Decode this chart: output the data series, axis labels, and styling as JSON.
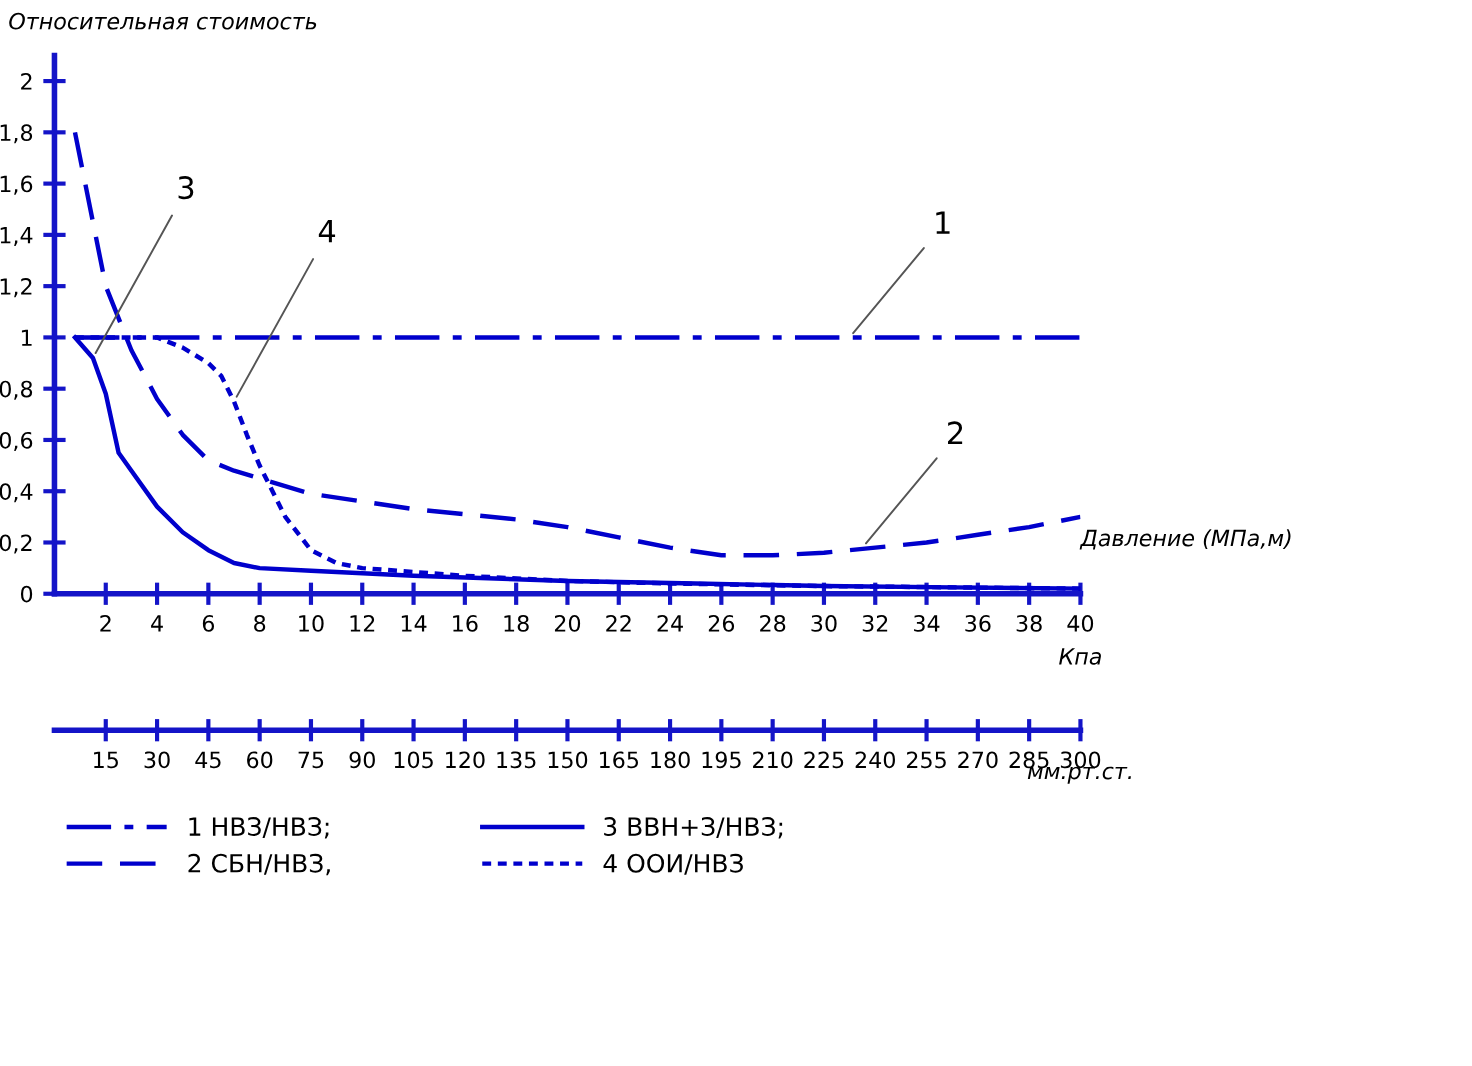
{
  "chart_data": {
    "type": "line",
    "ylabel": "Относительная стоимость",
    "xlabel": "Кпа",
    "x2label": "мм.рт.ст.",
    "xlim": [
      0,
      40
    ],
    "xticks": [
      2,
      4,
      6,
      8,
      10,
      12,
      14,
      16,
      18,
      20,
      22,
      24,
      26,
      28,
      30,
      32,
      34,
      36,
      38,
      40
    ],
    "x2lim": [
      0,
      300
    ],
    "x2ticks": [
      15,
      30,
      45,
      60,
      75,
      90,
      105,
      120,
      135,
      150,
      165,
      180,
      195,
      210,
      225,
      240,
      255,
      270,
      285,
      300
    ],
    "ylim": [
      0,
      2.1
    ],
    "yticks": [
      {
        "value": 0,
        "label": "0"
      },
      {
        "value": 0.2,
        "label": "0,2"
      },
      {
        "value": 0.4,
        "label": "0,4"
      },
      {
        "value": 0.6,
        "label": "0,6"
      },
      {
        "value": 0.8,
        "label": "0,8"
      },
      {
        "value": 1,
        "label": "1"
      },
      {
        "value": 1.2,
        "label": "1,2"
      },
      {
        "value": 1.4,
        "label": "1,4"
      },
      {
        "value": 1.6,
        "label": "1,6"
      },
      {
        "value": 1.8,
        "label": "1,8"
      },
      {
        "value": 2,
        "label": "2"
      }
    ],
    "grid": false,
    "legend": "bottom",
    "series": [
      {
        "name": "1 НВЗ/НВЗ;",
        "color": "#0000cc",
        "line_style": "dashdot",
        "x": [
          0.8,
          40
        ],
        "values": [
          1,
          1
        ]
      },
      {
        "name": "2 СБН/НВЗ,",
        "color": "#0000cc",
        "line_style": "dashed",
        "x": [
          0.8,
          2,
          3,
          4,
          5,
          6,
          7,
          8,
          10,
          12,
          14,
          16,
          18,
          20,
          22,
          24,
          26,
          28,
          30,
          32,
          34,
          36,
          38,
          40
        ],
        "values": [
          1.8,
          1.2,
          0.95,
          0.76,
          0.62,
          0.52,
          0.48,
          0.45,
          0.39,
          0.36,
          0.33,
          0.31,
          0.29,
          0.26,
          0.22,
          0.18,
          0.15,
          0.15,
          0.16,
          0.18,
          0.2,
          0.23,
          0.26,
          0.3
        ]
      },
      {
        "name": "3 ВВН+З/НВЗ;",
        "color": "#0000cc",
        "line_style": "solid",
        "x": [
          0.8,
          1.5,
          2,
          2.5,
          3,
          4,
          5,
          6,
          7,
          8,
          10,
          14,
          20,
          25,
          30,
          35,
          40
        ],
        "values": [
          1,
          0.92,
          0.78,
          0.55,
          0.48,
          0.34,
          0.24,
          0.17,
          0.12,
          0.1,
          0.09,
          0.07,
          0.05,
          0.04,
          0.03,
          0.025,
          0.02
        ]
      },
      {
        "name": "4 ООИ/НВЗ",
        "color": "#0000cc",
        "line_style": "dotted",
        "x": [
          0.8,
          3,
          4,
          5,
          6,
          6.5,
          7,
          7.5,
          8,
          9,
          10,
          11,
          12,
          16,
          20,
          24,
          30,
          40
        ],
        "values": [
          1,
          1,
          1,
          0.96,
          0.9,
          0.85,
          0.75,
          0.62,
          0.5,
          0.3,
          0.17,
          0.12,
          0.1,
          0.07,
          0.05,
          0.04,
          0.03,
          0.02
        ]
      }
    ],
    "annotations": [
      {
        "text": "3",
        "x": 1.5,
        "y": 0.92
      },
      {
        "text": "4",
        "x": 7,
        "y": 0.75
      },
      {
        "text": "1",
        "x": 31,
        "y": 1
      },
      {
        "text": "2",
        "x": 31.5,
        "y": 0.18
      },
      "Давление (МПа,м)"
    ]
  }
}
